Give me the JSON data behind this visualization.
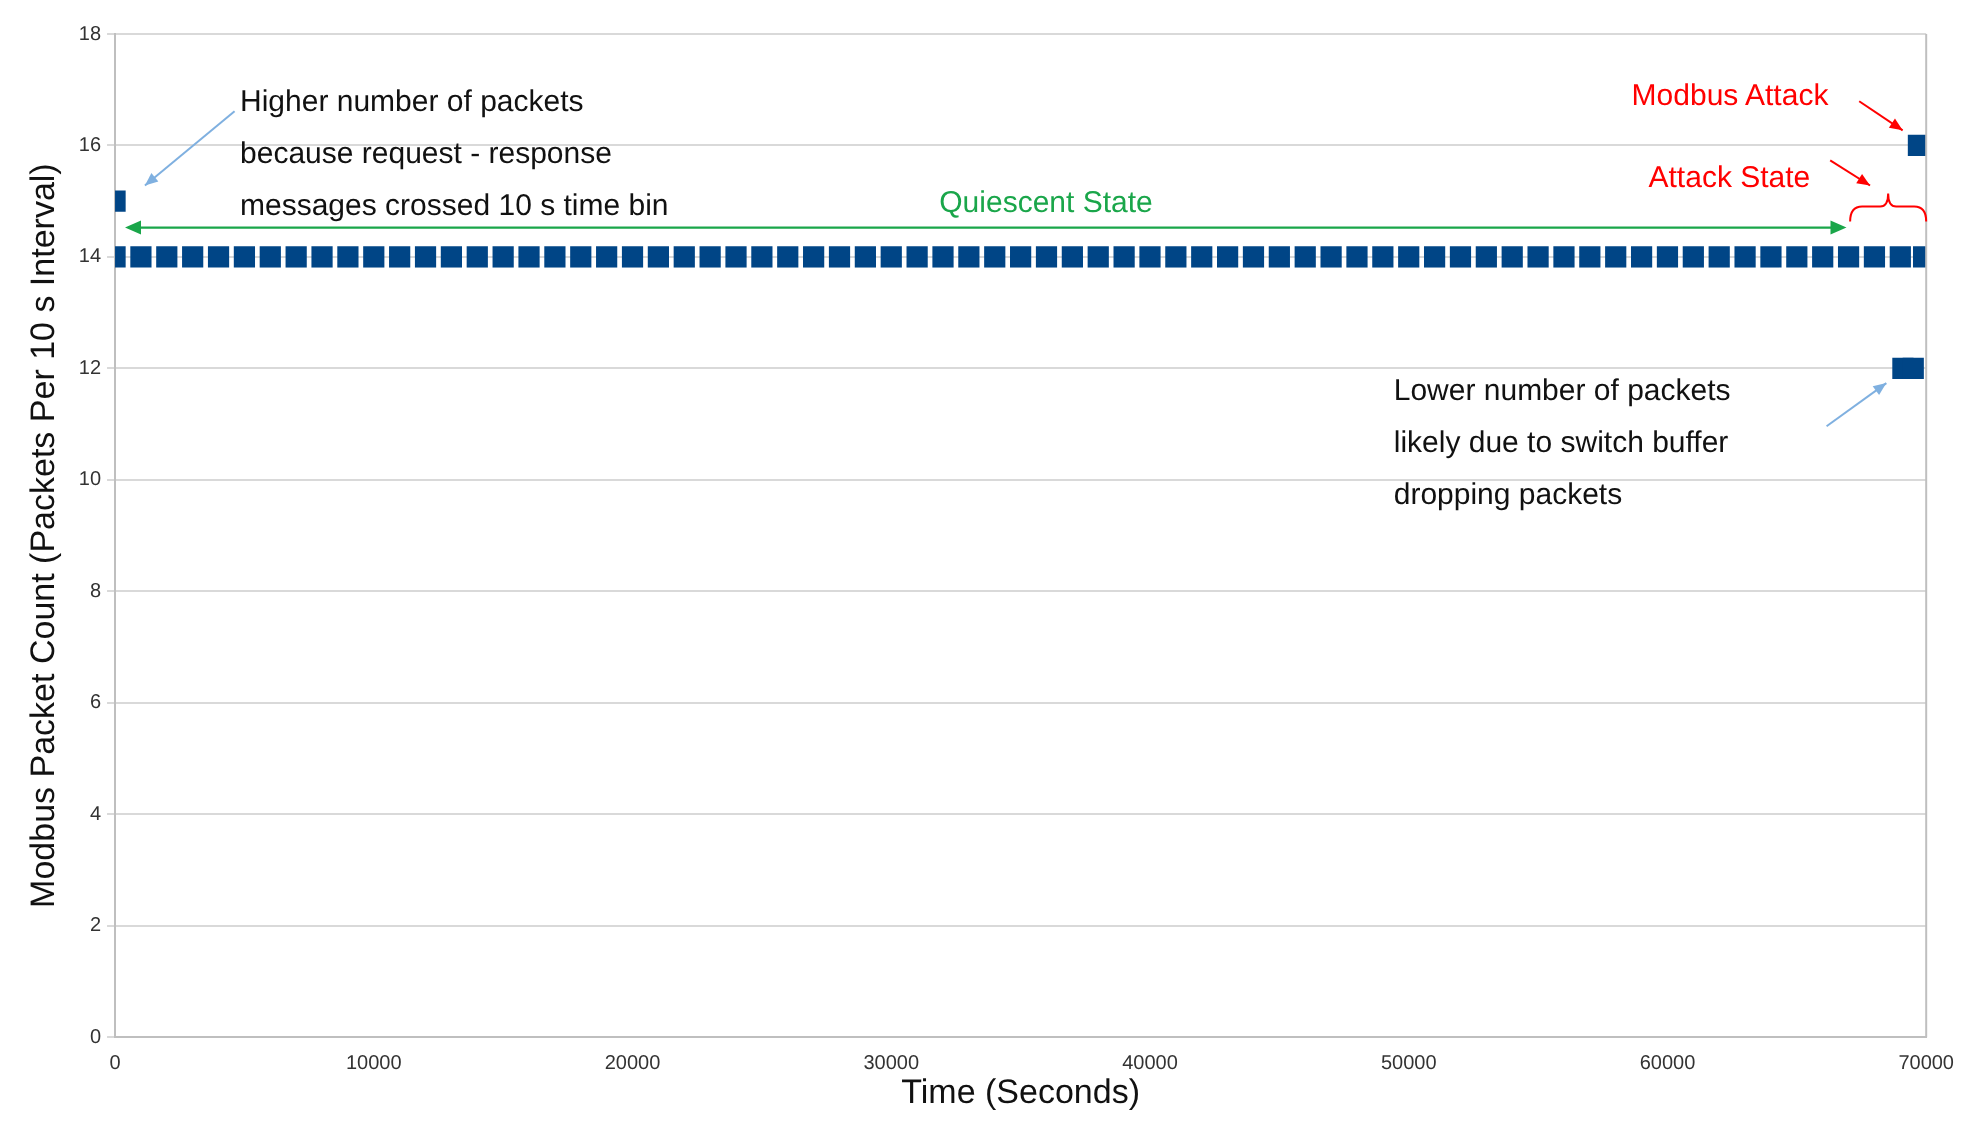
{
  "chart_data": {
    "type": "scatter",
    "xlabel": "Time (Seconds)",
    "ylabel": "Modbus Packet Count (Packets Per 10 s Interval)",
    "xlim": [
      0,
      70000
    ],
    "xticks": [
      0,
      10000,
      20000,
      30000,
      40000,
      50000,
      60000,
      70000
    ],
    "ylim": [
      0,
      18
    ],
    "yticks": [
      0,
      2,
      4,
      6,
      8,
      10,
      12,
      14,
      16,
      18
    ],
    "grid": "y",
    "legend": false,
    "marker": "square",
    "series": [
      {
        "color": "#004586",
        "x": [
          0,
          0,
          1000,
          2000,
          3000,
          4000,
          5000,
          6000,
          7000,
          8000,
          9000,
          10000,
          11000,
          12000,
          13000,
          14000,
          15000,
          16000,
          17000,
          18000,
          19000,
          20000,
          21000,
          22000,
          23000,
          24000,
          25000,
          26000,
          27000,
          28000,
          29000,
          30000,
          31000,
          32000,
          33000,
          34000,
          35000,
          36000,
          37000,
          38000,
          39000,
          40000,
          41000,
          42000,
          43000,
          44000,
          45000,
          46000,
          47000,
          48000,
          49000,
          50000,
          51000,
          52000,
          53000,
          54000,
          55000,
          56000,
          57000,
          58000,
          59000,
          60000,
          61000,
          62000,
          63000,
          64000,
          65000,
          66000,
          67000,
          68000,
          69000,
          69900,
          69100,
          69500,
          69700
        ],
        "values": [
          15,
          14,
          14,
          14,
          14,
          14,
          14,
          14,
          14,
          14,
          14,
          14,
          14,
          14,
          14,
          14,
          14,
          14,
          14,
          14,
          14,
          14,
          14,
          14,
          14,
          14,
          14,
          14,
          14,
          14,
          14,
          14,
          14,
          14,
          14,
          14,
          14,
          14,
          14,
          14,
          14,
          14,
          14,
          14,
          14,
          14,
          14,
          14,
          14,
          14,
          14,
          14,
          14,
          14,
          14,
          14,
          14,
          14,
          14,
          14,
          14,
          14,
          14,
          14,
          14,
          14,
          14,
          14,
          14,
          14,
          14,
          14,
          12,
          12,
          16
        ]
      }
    ],
    "annotations": [
      "Higher number of packets because request - response messages crossed 10 s time bin",
      "Quiescent State",
      "Modbus Attack",
      "Attack State",
      "Lower number of packets likely due to switch buffer dropping packets"
    ]
  }
}
